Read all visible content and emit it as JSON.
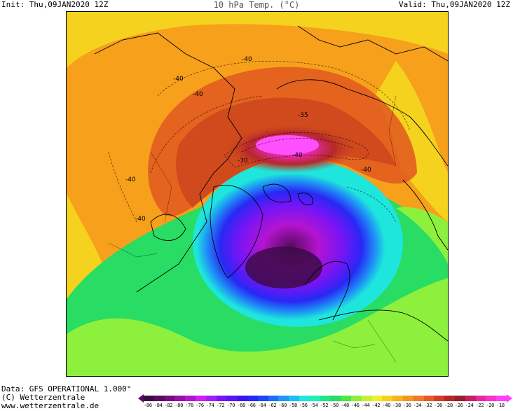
{
  "header": {
    "init": "Init: Thu,09JAN2020 12Z",
    "title": "10 hPa Temp. (°C)",
    "valid": "Valid: Thu,09JAN2020 12Z"
  },
  "footer": {
    "data_line": "Data: GFS OPERATIONAL 1.000°",
    "copyright": "(C) Wetterzentrale",
    "url": "www.wetterzentrale.de"
  },
  "contour_labels": [
    "-40",
    "-40",
    "-35",
    "-30",
    "-40",
    "-40",
    "-40",
    "-40",
    "-40"
  ],
  "scale": {
    "labels": [
      "-86",
      "-84",
      "-82",
      "-80",
      "-78",
      "-76",
      "-74",
      "-72",
      "-70",
      "-68",
      "-66",
      "-64",
      "-62",
      "-60",
      "-58",
      "-56",
      "-54",
      "-52",
      "-50",
      "-48",
      "-46",
      "-44",
      "-42",
      "-40",
      "-38",
      "-36",
      "-34",
      "-32",
      "-30",
      "-28",
      "-26",
      "-24",
      "-22",
      "-20",
      "-18"
    ],
    "colors": [
      "#3c0a46",
      "#5a0a5e",
      "#780a82",
      "#9612a8",
      "#b414d2",
      "#d21ef0",
      "#a21ef5",
      "#7814f5",
      "#5a14f5",
      "#3c14f0",
      "#2828f5",
      "#1e46f5",
      "#1e6ef5",
      "#1e96f5",
      "#1ebef5",
      "#1ee6dc",
      "#1ef0b4",
      "#1ee68c",
      "#28dc64",
      "#50e646",
      "#8cf03c",
      "#c8f032",
      "#f0f028",
      "#f5d21e",
      "#f5b41e",
      "#f5961e",
      "#f07828",
      "#e65a28",
      "#d23c28",
      "#b42828",
      "#961e32",
      "#c81e64",
      "#e628a0",
      "#f532d2",
      "#ff40ff"
    ]
  },
  "map_colors": {
    "background": "#f6a01c",
    "yellow": "#f5d21e",
    "orange": "#f0781e",
    "dark_orange": "#d24a1e",
    "red": "#b4282a",
    "magenta": "#e628a0",
    "pink": "#ff50ff",
    "green": "#28dc64",
    "light_green": "#8cf03c",
    "cyan": "#1ee6dc",
    "blue": "#2828f5",
    "violet": "#7814f5",
    "purple": "#b414d2",
    "dark_purple": "#5a0a5e",
    "coastline": "#000000"
  }
}
